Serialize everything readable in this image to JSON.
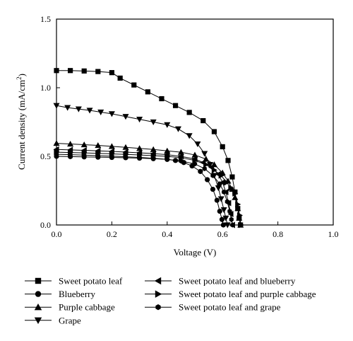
{
  "chart_data": {
    "type": "line",
    "xlabel": "Voltage (V)",
    "ylabel": "Current density (mA/cm",
    "ylabel_sup": "2",
    "ylabel_close": ")",
    "xlim": [
      0.0,
      1.0
    ],
    "ylim": [
      0.0,
      1.5
    ],
    "xticks": [
      "0.0",
      "0.2",
      "0.4",
      "0.6",
      "0.8",
      "1.0"
    ],
    "yticks": [
      "0.0",
      "0.5",
      "1.0",
      "1.5"
    ],
    "grid": false,
    "legend_position": "bottom",
    "series": [
      {
        "name": "Sweet potato leaf",
        "marker": "square",
        "points": [
          [
            0.0,
            1.125
          ],
          [
            0.05,
            1.125
          ],
          [
            0.1,
            1.122
          ],
          [
            0.15,
            1.118
          ],
          [
            0.2,
            1.11
          ],
          [
            0.23,
            1.07
          ],
          [
            0.28,
            1.02
          ],
          [
            0.33,
            0.97
          ],
          [
            0.38,
            0.92
          ],
          [
            0.43,
            0.87
          ],
          [
            0.48,
            0.82
          ],
          [
            0.53,
            0.76
          ],
          [
            0.57,
            0.68
          ],
          [
            0.6,
            0.57
          ],
          [
            0.62,
            0.47
          ],
          [
            0.635,
            0.35
          ],
          [
            0.645,
            0.24
          ],
          [
            0.655,
            0.12
          ],
          [
            0.66,
            0.05
          ],
          [
            0.665,
            0.0
          ]
        ]
      },
      {
        "name": "Blueberry",
        "marker": "circle",
        "points": [
          [
            0.0,
            0.5
          ],
          [
            0.05,
            0.498
          ],
          [
            0.1,
            0.496
          ],
          [
            0.15,
            0.494
          ],
          [
            0.2,
            0.492
          ],
          [
            0.25,
            0.49
          ],
          [
            0.3,
            0.487
          ],
          [
            0.35,
            0.483
          ],
          [
            0.4,
            0.478
          ],
          [
            0.43,
            0.47
          ],
          [
            0.46,
            0.455
          ],
          [
            0.49,
            0.43
          ],
          [
            0.52,
            0.39
          ],
          [
            0.545,
            0.33
          ],
          [
            0.565,
            0.26
          ],
          [
            0.58,
            0.18
          ],
          [
            0.59,
            0.1
          ],
          [
            0.598,
            0.04
          ],
          [
            0.603,
            0.0
          ]
        ]
      },
      {
        "name": "Purple cabbage",
        "marker": "triangle-up",
        "points": [
          [
            0.0,
            0.595
          ],
          [
            0.05,
            0.59
          ],
          [
            0.1,
            0.585
          ],
          [
            0.15,
            0.58
          ],
          [
            0.2,
            0.573
          ],
          [
            0.25,
            0.566
          ],
          [
            0.3,
            0.558
          ],
          [
            0.35,
            0.55
          ],
          [
            0.4,
            0.54
          ],
          [
            0.45,
            0.53
          ],
          [
            0.5,
            0.51
          ],
          [
            0.54,
            0.48
          ],
          [
            0.57,
            0.44
          ],
          [
            0.6,
            0.38
          ],
          [
            0.62,
            0.32
          ],
          [
            0.635,
            0.26
          ],
          [
            0.645,
            0.2
          ],
          [
            0.655,
            0.12
          ],
          [
            0.66,
            0.05
          ],
          [
            0.665,
            0.0
          ]
        ]
      },
      {
        "name": "Grape",
        "marker": "triangle-down",
        "points": [
          [
            0.0,
            0.87
          ],
          [
            0.04,
            0.855
          ],
          [
            0.08,
            0.845
          ],
          [
            0.12,
            0.835
          ],
          [
            0.16,
            0.822
          ],
          [
            0.2,
            0.81
          ],
          [
            0.25,
            0.79
          ],
          [
            0.3,
            0.77
          ],
          [
            0.35,
            0.75
          ],
          [
            0.4,
            0.73
          ],
          [
            0.44,
            0.7
          ],
          [
            0.48,
            0.65
          ],
          [
            0.51,
            0.59
          ],
          [
            0.535,
            0.52
          ],
          [
            0.555,
            0.44
          ],
          [
            0.57,
            0.36
          ],
          [
            0.585,
            0.27
          ],
          [
            0.595,
            0.19
          ],
          [
            0.605,
            0.11
          ],
          [
            0.612,
            0.05
          ],
          [
            0.618,
            0.0
          ]
        ]
      },
      {
        "name": "Sweet potato leaf and blueberry",
        "marker": "triangle-left",
        "points": [
          [
            0.0,
            0.55
          ],
          [
            0.05,
            0.547
          ],
          [
            0.1,
            0.544
          ],
          [
            0.15,
            0.54
          ],
          [
            0.2,
            0.536
          ],
          [
            0.25,
            0.531
          ],
          [
            0.3,
            0.526
          ],
          [
            0.35,
            0.52
          ],
          [
            0.4,
            0.512
          ],
          [
            0.45,
            0.5
          ],
          [
            0.5,
            0.48
          ],
          [
            0.53,
            0.455
          ],
          [
            0.56,
            0.42
          ],
          [
            0.585,
            0.37
          ],
          [
            0.6,
            0.31
          ],
          [
            0.612,
            0.24
          ],
          [
            0.622,
            0.16
          ],
          [
            0.63,
            0.08
          ],
          [
            0.636,
            0.0
          ]
        ]
      },
      {
        "name": "Sweet potato leaf and purple cabbage",
        "marker": "triangle-right",
        "points": [
          [
            0.0,
            0.53
          ],
          [
            0.05,
            0.528
          ],
          [
            0.1,
            0.525
          ],
          [
            0.15,
            0.522
          ],
          [
            0.2,
            0.518
          ],
          [
            0.25,
            0.514
          ],
          [
            0.3,
            0.51
          ],
          [
            0.35,
            0.505
          ],
          [
            0.4,
            0.5
          ],
          [
            0.45,
            0.49
          ],
          [
            0.5,
            0.47
          ],
          [
            0.54,
            0.44
          ],
          [
            0.57,
            0.4
          ],
          [
            0.595,
            0.36
          ],
          [
            0.615,
            0.31
          ],
          [
            0.63,
            0.27
          ],
          [
            0.645,
            0.23
          ],
          [
            0.655,
            0.15
          ],
          [
            0.662,
            0.07
          ],
          [
            0.667,
            0.0
          ]
        ]
      },
      {
        "name": "Sweet potato leaf and grape",
        "marker": "hexagon",
        "points": [
          [
            0.0,
            0.515
          ],
          [
            0.05,
            0.512
          ],
          [
            0.1,
            0.509
          ],
          [
            0.15,
            0.505
          ],
          [
            0.2,
            0.501
          ],
          [
            0.25,
            0.497
          ],
          [
            0.3,
            0.492
          ],
          [
            0.35,
            0.486
          ],
          [
            0.4,
            0.478
          ],
          [
            0.45,
            0.466
          ],
          [
            0.5,
            0.445
          ],
          [
            0.535,
            0.41
          ],
          [
            0.565,
            0.36
          ],
          [
            0.59,
            0.3
          ],
          [
            0.605,
            0.24
          ],
          [
            0.617,
            0.17
          ],
          [
            0.626,
            0.1
          ],
          [
            0.632,
            0.04
          ],
          [
            0.636,
            0.0
          ]
        ]
      }
    ]
  }
}
